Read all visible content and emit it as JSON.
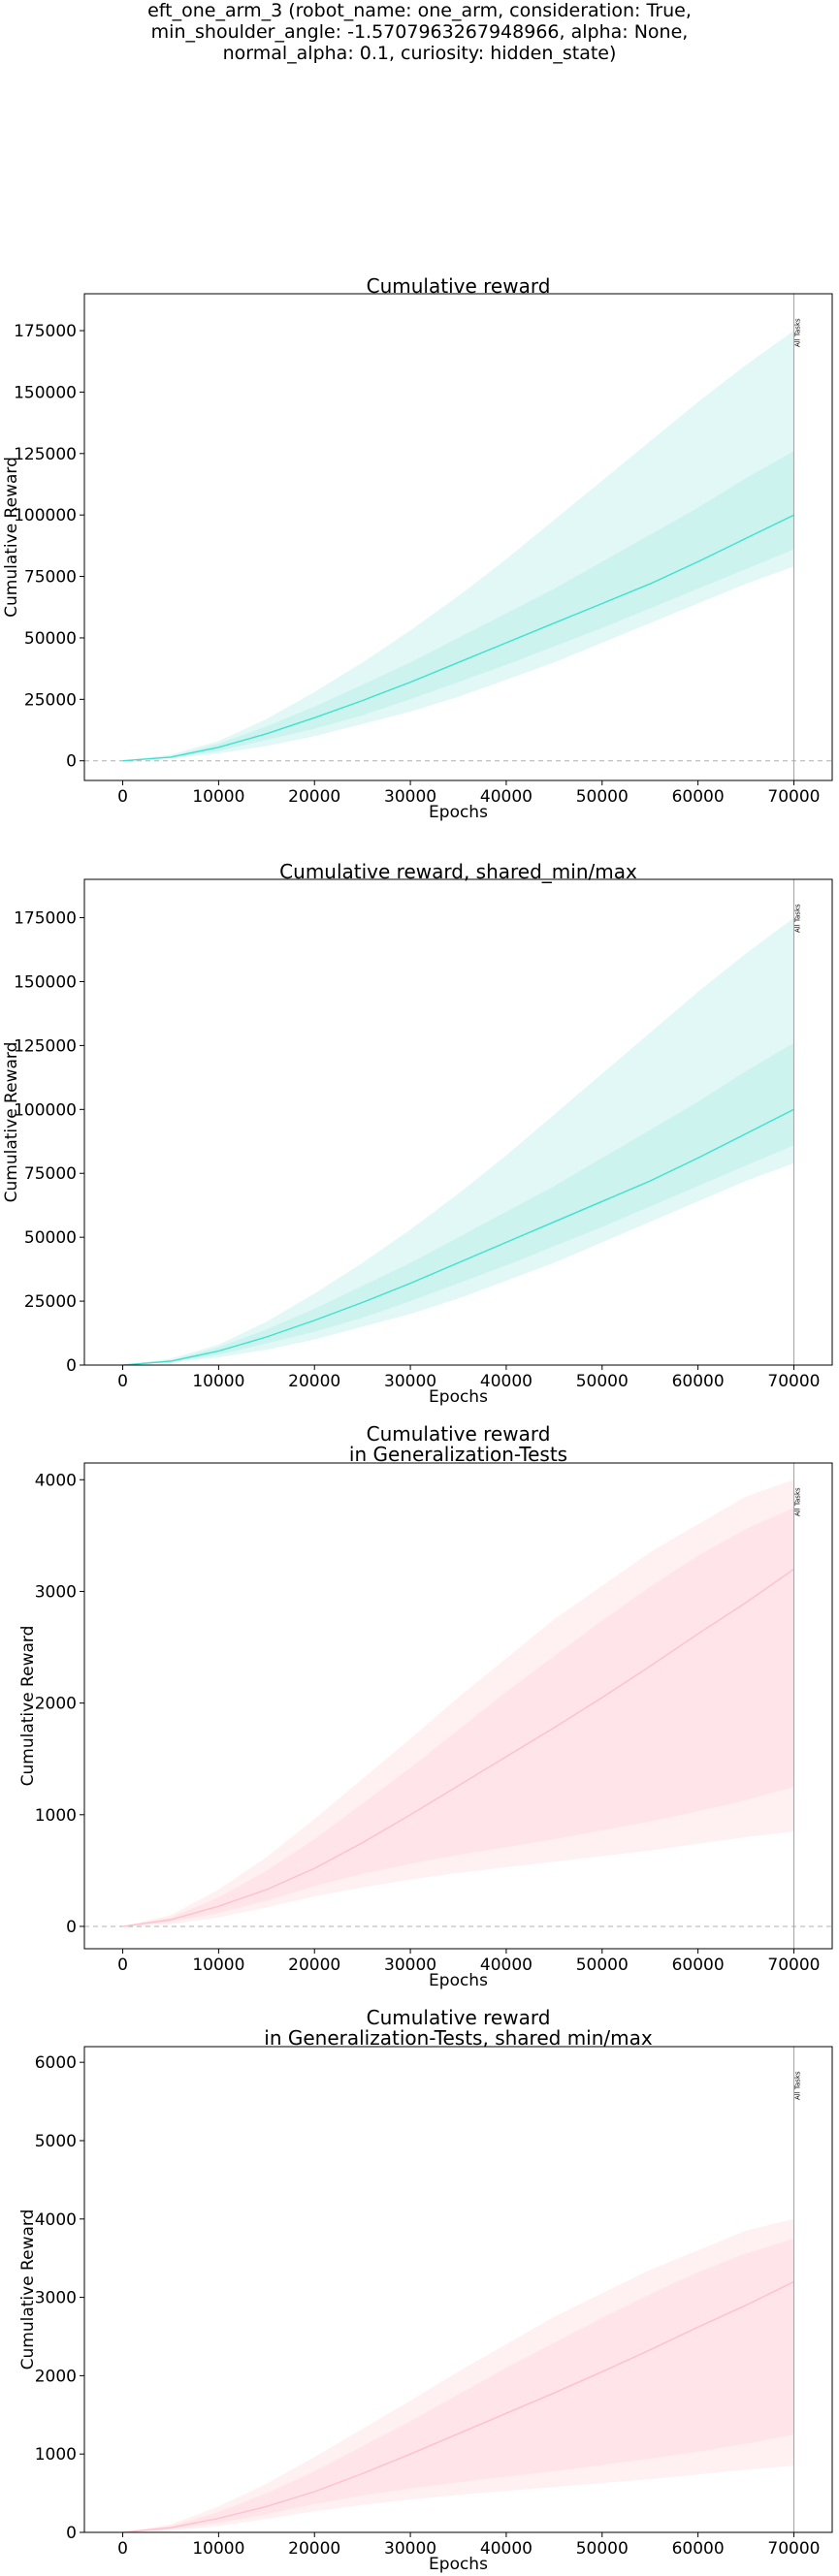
{
  "figure": {
    "suptitle_lines": [
      "eft_one_arm_3 (robot_name: one_arm, consideration: True,",
      "min_shoulder_angle: -1.5707963267948966, alpha: None,",
      "normal_alpha: 0.1, curiosity: hidden_state)"
    ]
  },
  "chart_data": [
    {
      "type": "line",
      "title_lines": [
        "Cumulative reward"
      ],
      "xlabel": "Epochs",
      "ylabel": "Cumulative Reward",
      "xlim": [
        -4000,
        74000
      ],
      "ylim": [
        -8000,
        190000
      ],
      "xticks": [
        0,
        10000,
        20000,
        30000,
        40000,
        50000,
        60000,
        70000
      ],
      "yticks": [
        0,
        25000,
        50000,
        75000,
        100000,
        125000,
        150000,
        175000
      ],
      "zero_line": true,
      "vline": {
        "x": 70000,
        "label": "All Tasks"
      },
      "color": "#40e0d0",
      "band_outer_color": "#e2f8f6",
      "band_inner_color": "#cdf3ef",
      "x": [
        0,
        5000,
        10000,
        15000,
        20000,
        25000,
        30000,
        35000,
        40000,
        45000,
        50000,
        55000,
        60000,
        65000,
        70000
      ],
      "series": [
        {
          "name": "mean",
          "values": [
            0,
            1500,
            5500,
            11000,
            17500,
            24500,
            32000,
            40000,
            48000,
            56000,
            64000,
            72000,
            81000,
            90500,
            100000
          ]
        },
        {
          "name": "min",
          "values": [
            0,
            1000,
            3000,
            6000,
            10000,
            15000,
            20000,
            26000,
            33000,
            40000,
            48000,
            56000,
            64000,
            72000,
            79000
          ]
        },
        {
          "name": "max",
          "values": [
            0,
            2500,
            8000,
            17000,
            28000,
            40000,
            53000,
            67000,
            82000,
            98000,
            114000,
            130000,
            146000,
            161000,
            175000
          ]
        },
        {
          "name": "q_low",
          "values": [
            0,
            1200,
            4000,
            8500,
            13000,
            18500,
            25000,
            32000,
            39000,
            46500,
            54000,
            62000,
            70000,
            78000,
            86000
          ]
        },
        {
          "name": "q_high",
          "values": [
            0,
            1800,
            7000,
            14000,
            22000,
            31000,
            40000,
            50000,
            60000,
            70000,
            81000,
            92000,
            103000,
            115000,
            126000
          ]
        }
      ]
    },
    {
      "type": "line",
      "title_lines": [
        "Cumulative reward, shared_min/max"
      ],
      "xlabel": "Epochs",
      "ylabel": "Cumulative Reward",
      "xlim": [
        -4000,
        74000
      ],
      "ylim": [
        0,
        190000
      ],
      "xticks": [
        0,
        10000,
        20000,
        30000,
        40000,
        50000,
        60000,
        70000
      ],
      "yticks": [
        0,
        25000,
        50000,
        75000,
        100000,
        125000,
        150000,
        175000
      ],
      "zero_line": false,
      "vline": {
        "x": 70000,
        "label": "All Tasks"
      },
      "color": "#40e0d0",
      "band_outer_color": "#e2f8f6",
      "band_inner_color": "#cdf3ef",
      "x": [
        0,
        5000,
        10000,
        15000,
        20000,
        25000,
        30000,
        35000,
        40000,
        45000,
        50000,
        55000,
        60000,
        65000,
        70000
      ],
      "series": [
        {
          "name": "mean",
          "values": [
            0,
            1500,
            5500,
            11000,
            17500,
            24500,
            32000,
            40000,
            48000,
            56000,
            64000,
            72000,
            81000,
            90500,
            100000
          ]
        },
        {
          "name": "min",
          "values": [
            0,
            1000,
            3000,
            6000,
            10000,
            15000,
            20000,
            26000,
            33000,
            40000,
            48000,
            56000,
            64000,
            72000,
            79000
          ]
        },
        {
          "name": "max",
          "values": [
            0,
            2500,
            8000,
            17000,
            28000,
            40000,
            53000,
            67000,
            82000,
            98000,
            114000,
            130000,
            146000,
            161000,
            175000
          ]
        },
        {
          "name": "q_low",
          "values": [
            0,
            1200,
            4000,
            8500,
            13000,
            18500,
            25000,
            32000,
            39000,
            46500,
            54000,
            62000,
            70000,
            78000,
            86000
          ]
        },
        {
          "name": "q_high",
          "values": [
            0,
            1800,
            7000,
            14000,
            22000,
            31000,
            40000,
            50000,
            60000,
            70000,
            81000,
            92000,
            103000,
            115000,
            126000
          ]
        }
      ]
    },
    {
      "type": "line",
      "title_lines": [
        "Cumulative reward",
        "in Generalization-Tests"
      ],
      "xlabel": "Epochs",
      "ylabel": "Cumulative Reward",
      "xlim": [
        -4000,
        74000
      ],
      "ylim": [
        -200,
        4150
      ],
      "xticks": [
        0,
        10000,
        20000,
        30000,
        40000,
        50000,
        60000,
        70000
      ],
      "yticks": [
        0,
        1000,
        2000,
        3000,
        4000
      ],
      "zero_line": true,
      "vline": {
        "x": 70000,
        "label": "All Tasks"
      },
      "color": "#ffc0cb",
      "band_outer_color": "#fff0f2",
      "band_inner_color": "#ffe5ea",
      "x": [
        0,
        5000,
        10000,
        15000,
        20000,
        25000,
        30000,
        35000,
        40000,
        45000,
        50000,
        55000,
        60000,
        65000,
        70000
      ],
      "series": [
        {
          "name": "mean",
          "values": [
            0,
            60,
            180,
            330,
            520,
            750,
            1000,
            1260,
            1520,
            1780,
            2050,
            2330,
            2620,
            2900,
            3200
          ]
        },
        {
          "name": "min",
          "values": [
            0,
            20,
            80,
            170,
            270,
            350,
            420,
            480,
            530,
            580,
            630,
            680,
            740,
            800,
            850
          ]
        },
        {
          "name": "max",
          "values": [
            0,
            100,
            330,
            620,
            960,
            1320,
            1680,
            2050,
            2400,
            2750,
            3050,
            3350,
            3600,
            3850,
            4000
          ]
        },
        {
          "name": "q_low",
          "values": [
            0,
            40,
            120,
            230,
            360,
            470,
            560,
            640,
            710,
            780,
            860,
            940,
            1030,
            1130,
            1250
          ]
        },
        {
          "name": "q_high",
          "values": [
            0,
            80,
            260,
            500,
            780,
            1100,
            1420,
            1760,
            2100,
            2420,
            2740,
            3040,
            3320,
            3560,
            3750
          ]
        }
      ]
    },
    {
      "type": "line",
      "title_lines": [
        "Cumulative reward",
        "in Generalization-Tests, shared min/max"
      ],
      "xlabel": "Epochs",
      "ylabel": "Cumulative Reward",
      "xlim": [
        -4000,
        74000
      ],
      "ylim": [
        0,
        6200
      ],
      "xticks": [
        0,
        10000,
        20000,
        30000,
        40000,
        50000,
        60000,
        70000
      ],
      "yticks": [
        0,
        1000,
        2000,
        3000,
        4000,
        5000,
        6000
      ],
      "zero_line": false,
      "vline": {
        "x": 70000,
        "label": "All Tasks"
      },
      "color": "#ffc0cb",
      "band_outer_color": "#fff0f2",
      "band_inner_color": "#ffe5ea",
      "x": [
        0,
        5000,
        10000,
        15000,
        20000,
        25000,
        30000,
        35000,
        40000,
        45000,
        50000,
        55000,
        60000,
        65000,
        70000
      ],
      "series": [
        {
          "name": "mean",
          "values": [
            0,
            60,
            180,
            330,
            520,
            750,
            1000,
            1260,
            1520,
            1780,
            2050,
            2330,
            2620,
            2900,
            3200
          ]
        },
        {
          "name": "min",
          "values": [
            0,
            20,
            80,
            170,
            270,
            350,
            420,
            480,
            530,
            580,
            630,
            680,
            740,
            800,
            850
          ]
        },
        {
          "name": "max",
          "values": [
            0,
            100,
            330,
            620,
            960,
            1320,
            1680,
            2050,
            2400,
            2750,
            3050,
            3350,
            3600,
            3850,
            4000
          ]
        },
        {
          "name": "q_low",
          "values": [
            0,
            40,
            120,
            230,
            360,
            470,
            560,
            640,
            710,
            780,
            860,
            940,
            1030,
            1130,
            1250
          ]
        },
        {
          "name": "q_high",
          "values": [
            0,
            80,
            260,
            500,
            780,
            1100,
            1420,
            1760,
            2100,
            2420,
            2740,
            3040,
            3320,
            3560,
            3750
          ]
        }
      ]
    }
  ]
}
